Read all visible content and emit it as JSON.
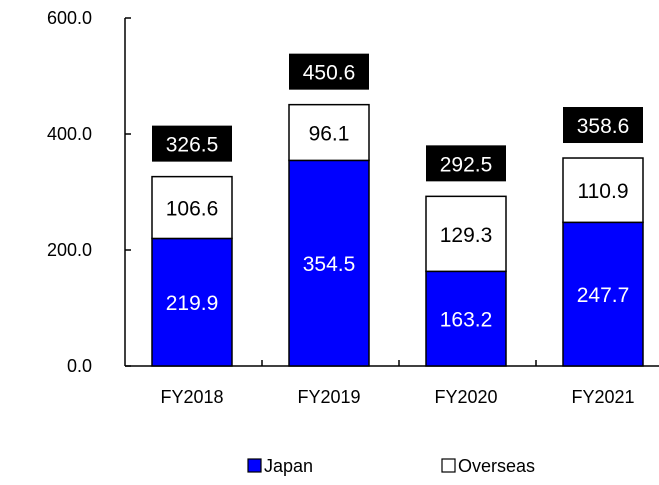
{
  "chart_data": {
    "type": "bar",
    "stacked": true,
    "categories": [
      "FY2018",
      "FY2019",
      "FY2020",
      "FY2021"
    ],
    "series": [
      {
        "name": "Japan",
        "values": [
          219.9,
          354.5,
          163.2,
          247.7
        ],
        "color": "#0000ff",
        "label_color": "#ffffff"
      },
      {
        "name": "Overseas",
        "values": [
          106.6,
          96.1,
          129.3,
          110.9
        ],
        "color": "#ffffff",
        "label_color": "#000000"
      }
    ],
    "totals": [
      326.5,
      450.6,
      292.5,
      358.6
    ],
    "total_box_color": "#000000",
    "yticks": [
      "0.0",
      "200.0",
      "400.0",
      "600.0"
    ],
    "ylim": [
      0,
      600
    ],
    "grid": false,
    "legend_position": "bottom"
  }
}
